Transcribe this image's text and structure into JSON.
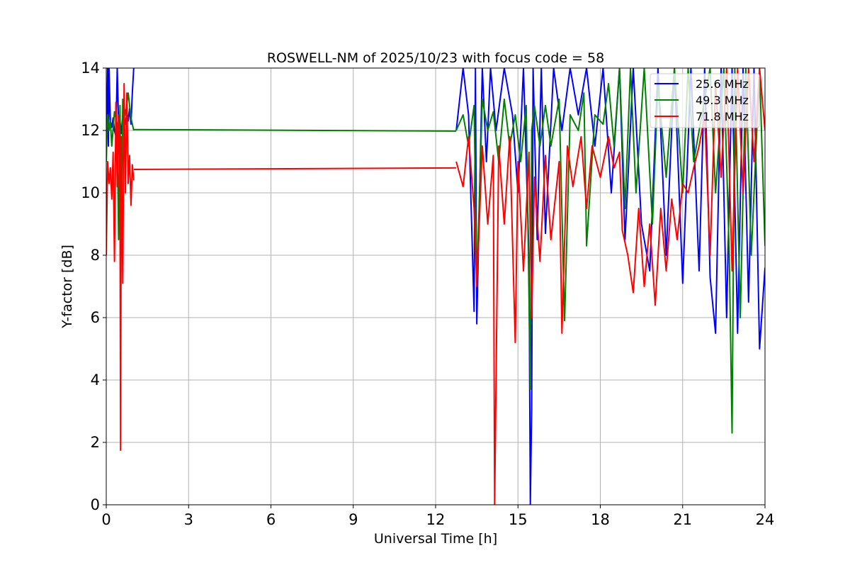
{
  "chart_data": {
    "type": "line",
    "title": "ROSWELL-NM of 2025/10/23 with focus code = 58",
    "xlabel": "Universal Time [h]",
    "ylabel": "Y-factor [dB]",
    "xlim": [
      0,
      24
    ],
    "ylim": [
      0,
      14
    ],
    "xticks": [
      0,
      3,
      6,
      9,
      12,
      15,
      18,
      21,
      24
    ],
    "yticks": [
      0,
      2,
      4,
      6,
      8,
      10,
      12,
      14
    ],
    "grid": true,
    "legend_position": "upper-right",
    "series": [
      {
        "name": "25.6 MHz",
        "color": "#0000ff",
        "segments": [
          {
            "x": [
              0.0,
              0.05,
              0.08,
              0.1,
              0.15,
              0.2,
              0.25,
              0.3,
              0.35,
              0.4,
              0.45,
              0.5,
              0.55,
              0.6,
              0.65,
              0.7,
              0.75,
              0.8,
              0.85,
              0.9,
              0.95,
              1.0
            ],
            "y": [
              11.0,
              14.0,
              11.5,
              14.0,
              12.3,
              12.1,
              12.4,
              12.0,
              11.8,
              14.0,
              12.2,
              12.3,
              11.9,
              12.5,
              12.4,
              12.2,
              12.6,
              12.3,
              12.7,
              12.2,
              13.2,
              14.0
            ]
          },
          {
            "x": [
              12.75,
              13.0,
              13.2,
              13.4,
              13.45,
              13.5,
              13.7,
              13.85,
              14.0,
              14.2,
              14.5,
              14.8,
              15.0,
              15.2,
              15.4,
              15.45,
              15.5,
              15.55,
              15.7,
              15.85,
              16.0,
              16.3,
              16.6,
              16.9,
              17.2,
              17.5,
              17.8,
              18.1,
              18.4,
              18.7,
              18.9,
              19.2,
              19.5,
              19.8,
              20.1,
              20.4,
              20.7,
              21.0,
              21.3,
              21.6,
              21.8,
              22.0,
              22.2,
              22.4,
              22.6,
              22.8,
              23.0,
              23.2,
              23.4,
              23.6,
              23.8,
              24.0
            ],
            "y": [
              12.0,
              14.0,
              12.5,
              6.2,
              14.0,
              5.8,
              14.0,
              11.0,
              14.0,
              12.0,
              14.0,
              12.5,
              10.0,
              14.0,
              8.0,
              0.0,
              3.1,
              14.0,
              8.5,
              14.0,
              8.7,
              14.0,
              12.0,
              14.0,
              12.5,
              14.0,
              11.5,
              14.0,
              10.0,
              14.0,
              8.5,
              14.0,
              9.0,
              7.5,
              14.0,
              8.0,
              14.0,
              7.1,
              14.0,
              7.5,
              14.0,
              7.3,
              5.5,
              14.0,
              6.0,
              14.0,
              5.5,
              14.0,
              6.5,
              14.0,
              5.0,
              7.6
            ]
          }
        ]
      },
      {
        "name": "49.3 MHz",
        "color": "#008000",
        "segments": [
          {
            "x": [
              0.0,
              0.05,
              0.1,
              0.15,
              0.2,
              0.3,
              0.4,
              0.45,
              0.5,
              0.55,
              0.6,
              0.7,
              0.8,
              0.9,
              1.0
            ],
            "y": [
              11.0,
              12.5,
              12.0,
              12.3,
              11.5,
              12.6,
              12.2,
              8.5,
              12.8,
              8.1,
              13.0,
              12.5,
              13.2,
              12.4,
              12.0
            ]
          },
          {
            "x": [
              1.0,
              12.75
            ],
            "y": [
              12.03,
              11.98
            ]
          },
          {
            "x": [
              12.75,
              13.0,
              13.2,
              13.4,
              13.5,
              13.7,
              13.9,
              14.1,
              14.3,
              14.5,
              14.7,
              14.9,
              15.1,
              15.3,
              15.45,
              15.5,
              15.6,
              15.8,
              16.0,
              16.2,
              16.5,
              16.7,
              16.9,
              17.2,
              17.4,
              17.5,
              17.8,
              18.1,
              18.3,
              18.5,
              18.7,
              18.9,
              19.1,
              19.3,
              19.6,
              19.9,
              20.1,
              20.4,
              20.7,
              21.0,
              21.2,
              21.4,
              21.7,
              22.0,
              22.2,
              22.5,
              22.7,
              22.8,
              22.9,
              23.1,
              23.3,
              23.5,
              23.8,
              24.0
            ],
            "y": [
              12.0,
              12.5,
              11.5,
              12.8,
              7.0,
              13.0,
              12.0,
              12.6,
              11.0,
              13.0,
              11.5,
              12.5,
              11.0,
              12.8,
              3.7,
              12.0,
              12.8,
              11.5,
              12.8,
              11.5,
              13.0,
              5.9,
              12.5,
              12.0,
              13.2,
              8.3,
              12.5,
              12.2,
              13.5,
              11.5,
              14.0,
              9.5,
              14.0,
              10.0,
              14.0,
              9.0,
              13.5,
              10.5,
              14.0,
              10.0,
              14.0,
              11.0,
              12.5,
              14.0,
              10.0,
              14.0,
              8.0,
              2.3,
              14.0,
              6.0,
              14.0,
              8.0,
              14.0,
              8.3
            ]
          }
        ]
      },
      {
        "name": "71.8 MHz",
        "color": "#ff0000",
        "segments": [
          {
            "x": [
              0.0,
              0.05,
              0.1,
              0.15,
              0.2,
              0.25,
              0.3,
              0.35,
              0.4,
              0.45,
              0.5,
              0.52,
              0.55,
              0.6,
              0.65,
              0.7,
              0.75,
              0.8,
              0.85,
              0.9,
              0.95,
              1.0
            ],
            "y": [
              8.0,
              11.0,
              10.3,
              10.8,
              9.8,
              11.3,
              7.8,
              12.9,
              10.2,
              12.5,
              10.0,
              1.75,
              11.8,
              7.1,
              13.5,
              10.0,
              13.2,
              10.3,
              11.2,
              9.6,
              10.9,
              10.4
            ]
          },
          {
            "x": [
              1.0,
              12.75
            ],
            "y": [
              10.75,
              10.8
            ]
          },
          {
            "x": [
              12.75,
              13.0,
              13.2,
              13.4,
              13.5,
              13.7,
              13.9,
              14.1,
              14.15,
              14.3,
              14.5,
              14.7,
              14.9,
              15.0,
              15.2,
              15.4,
              15.5,
              15.6,
              15.8,
              16.0,
              16.2,
              16.5,
              16.6,
              16.8,
              17.0,
              17.3,
              17.5,
              17.7,
              18.0,
              18.3,
              18.5,
              18.7,
              18.8,
              19.0,
              19.2,
              19.4,
              19.6,
              19.8,
              20.0,
              20.2,
              20.4,
              20.6,
              20.8,
              21.0,
              21.2,
              21.4,
              21.6,
              21.8,
              22.0,
              22.2,
              22.4,
              22.6,
              22.8,
              23.0,
              23.2,
              23.4,
              23.6,
              23.8,
              24.0
            ],
            "y": [
              11.0,
              10.2,
              11.8,
              9.5,
              7.0,
              11.5,
              9.0,
              11.2,
              0.0,
              11.5,
              9.0,
              11.8,
              5.2,
              11.0,
              7.5,
              11.3,
              6.0,
              10.5,
              7.8,
              11.2,
              8.5,
              11.0,
              5.5,
              11.5,
              10.2,
              11.8,
              9.5,
              11.5,
              10.5,
              11.8,
              10.8,
              11.3,
              8.8,
              8.0,
              6.8,
              9.5,
              7.0,
              9.0,
              6.4,
              9.5,
              7.5,
              9.8,
              8.5,
              10.3,
              10.0,
              10.8,
              11.5,
              12.5,
              8.0,
              13.5,
              10.5,
              14.0,
              7.5,
              14.0,
              10.0,
              14.0,
              11.0,
              14.0,
              12.0
            ]
          }
        ]
      }
    ]
  }
}
